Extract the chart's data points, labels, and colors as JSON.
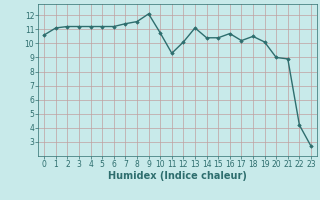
{
  "x": [
    0,
    1,
    2,
    3,
    4,
    5,
    6,
    7,
    8,
    9,
    10,
    11,
    12,
    13,
    14,
    15,
    16,
    17,
    18,
    19,
    20,
    21,
    22,
    23
  ],
  "y": [
    10.6,
    11.1,
    11.2,
    11.2,
    11.2,
    11.2,
    11.2,
    11.4,
    11.55,
    12.1,
    10.75,
    9.3,
    10.1,
    11.1,
    10.4,
    10.4,
    10.7,
    10.2,
    10.5,
    10.1,
    9.0,
    8.9,
    4.2,
    2.7
  ],
  "line_color": "#2e6e6e",
  "marker": "D",
  "marker_size": 1.8,
  "bg_color": "#c8eaea",
  "grid_color": "#c0a0a0",
  "xlabel": "Humidex (Indice chaleur)",
  "xlim": [
    -0.5,
    23.5
  ],
  "ylim": [
    2,
    12.8
  ],
  "yticks": [
    3,
    4,
    5,
    6,
    7,
    8,
    9,
    10,
    11,
    12
  ],
  "xticks": [
    0,
    1,
    2,
    3,
    4,
    5,
    6,
    7,
    8,
    9,
    10,
    11,
    12,
    13,
    14,
    15,
    16,
    17,
    18,
    19,
    20,
    21,
    22,
    23
  ],
  "tick_label_fontsize": 5.5,
  "xlabel_fontsize": 7,
  "line_width": 1.0
}
